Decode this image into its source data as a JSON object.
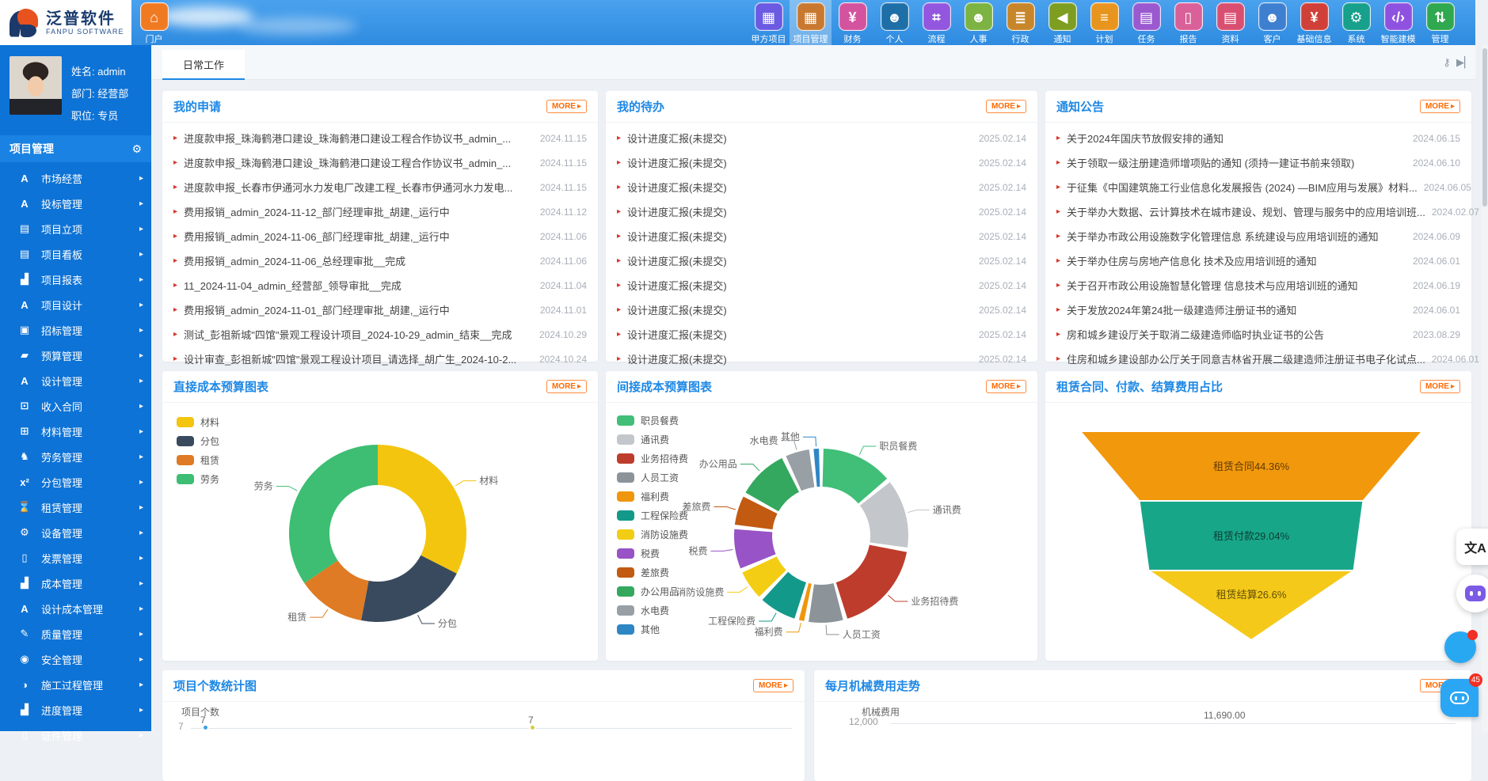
{
  "topnav": {
    "logo": {
      "title": "泛普软件",
      "subtitle": "FANPU SOFTWARE"
    },
    "items": [
      {
        "label": "门户",
        "icon": "home-icon",
        "color": "#F07A22",
        "active": false
      },
      {
        "label": "甲方项目",
        "icon": "modules-icon",
        "color": "#6A5BE2",
        "active": false
      },
      {
        "label": "项目管理",
        "icon": "modules-icon",
        "color": "#C9792F",
        "active": true
      },
      {
        "label": "财务",
        "icon": "finance-icon",
        "color": "#D4539E",
        "active": false
      },
      {
        "label": "个人",
        "icon": "user-icon",
        "color": "#1E6FA8",
        "active": false
      },
      {
        "label": "流程",
        "icon": "flow-icon",
        "color": "#9257DE",
        "active": false
      },
      {
        "label": "人事",
        "icon": "hr-icon",
        "color": "#7CB342",
        "active": false
      },
      {
        "label": "行政",
        "icon": "layers-icon",
        "color": "#C8862A",
        "active": false
      },
      {
        "label": "通知",
        "icon": "speaker-icon",
        "color": "#7E9E22",
        "active": false
      },
      {
        "label": "计划",
        "icon": "sliders-icon",
        "color": "#E8951F",
        "active": false
      },
      {
        "label": "任务",
        "icon": "clipboard-icon",
        "color": "#9B59D0",
        "active": false
      },
      {
        "label": "报告",
        "icon": "report-icon",
        "color": "#D96098",
        "active": false
      },
      {
        "label": "资料",
        "icon": "document-icon",
        "color": "#D94F72",
        "active": false
      },
      {
        "label": "客户",
        "icon": "customers-icon",
        "color": "#3E7FD0",
        "active": false
      },
      {
        "label": "基础信息",
        "icon": "info-doc-icon",
        "color": "#D04038",
        "active": false
      },
      {
        "label": "系统",
        "icon": "gear-icon",
        "color": "#17A08C",
        "active": false
      },
      {
        "label": "智能建模",
        "icon": "code-icon",
        "color": "#8F52E0",
        "active": false
      },
      {
        "label": "管理",
        "icon": "sort-icon",
        "color": "#2FA84F",
        "active": false
      }
    ]
  },
  "sidebar": {
    "profile": {
      "name": "姓名: admin",
      "department": "部门: 经营部",
      "position": "职位: 专员"
    },
    "section_label": "项目管理",
    "items": [
      {
        "label": "市场经营",
        "icon": "market-icon"
      },
      {
        "label": "投标管理",
        "icon": "bid-icon"
      },
      {
        "label": "项目立项",
        "icon": "project-init-icon"
      },
      {
        "label": "项目看板",
        "icon": "kanban-icon"
      },
      {
        "label": "项目报表",
        "icon": "chart-icon"
      },
      {
        "label": "项目设计",
        "icon": "design-icon"
      },
      {
        "label": "招标管理",
        "icon": "tender-icon"
      },
      {
        "label": "预算管理",
        "icon": "folder-icon"
      },
      {
        "label": "设计管理",
        "icon": "design-icon"
      },
      {
        "label": "收入合同",
        "icon": "money-icon"
      },
      {
        "label": "材料管理",
        "icon": "cart-icon"
      },
      {
        "label": "劳务管理",
        "icon": "labor-icon"
      },
      {
        "label": "分包管理",
        "icon": "subcontract-icon"
      },
      {
        "label": "租赁管理",
        "icon": "hourglass-icon"
      },
      {
        "label": "设备管理",
        "icon": "wrench-icon"
      },
      {
        "label": "发票管理",
        "icon": "invoice-icon"
      },
      {
        "label": "成本管理",
        "icon": "cost-chart-icon"
      },
      {
        "label": "设计成本管理",
        "icon": "design-icon"
      },
      {
        "label": "质量管理",
        "icon": "edit-icon"
      },
      {
        "label": "安全管理",
        "icon": "helmet-icon"
      },
      {
        "label": "施工过程管理",
        "icon": "process-icon"
      },
      {
        "label": "进度管理",
        "icon": "progress-icon"
      },
      {
        "label": "证件管理",
        "icon": "certificate-icon"
      }
    ]
  },
  "tabbar": {
    "active_tab": "日常工作"
  },
  "panels": {
    "my_applications": {
      "title": "我的申请",
      "more_label": "MORE",
      "items": [
        {
          "text": "进度款申报_珠海鹤港口建设_珠海鹤港口建设工程合作协议书_admin_...",
          "date": "2024.11.15"
        },
        {
          "text": "进度款申报_珠海鹤港口建设_珠海鹤港口建设工程合作协议书_admin_...",
          "date": "2024.11.15"
        },
        {
          "text": "进度款申报_长春市伊通河水力发电厂改建工程_长春市伊通河水力发电...",
          "date": "2024.11.15"
        },
        {
          "text": "费用报销_admin_2024-11-12_部门经理审批_胡建,_运行中",
          "date": "2024.11.12"
        },
        {
          "text": "费用报销_admin_2024-11-06_部门经理审批_胡建,_运行中",
          "date": "2024.11.06"
        },
        {
          "text": "费用报销_admin_2024-11-06_总经理审批__完成",
          "date": "2024.11.06"
        },
        {
          "text": "11_2024-11-04_admin_经营部_领导审批__完成",
          "date": "2024.11.04"
        },
        {
          "text": "费用报销_admin_2024-11-01_部门经理审批_胡建,_运行中",
          "date": "2024.11.01"
        },
        {
          "text": "测试_彭祖新城\"四馆\"景观工程设计项目_2024-10-29_admin_结束__完成",
          "date": "2024.10.29"
        },
        {
          "text": "设计审查_彭祖新城\"四馆\"景观工程设计项目_请选择_胡广生_2024-10-2...",
          "date": "2024.10.24"
        }
      ]
    },
    "my_todos": {
      "title": "我的待办",
      "more_label": "MORE",
      "items": [
        {
          "text": "设计进度汇报(未提交)",
          "date": "2025.02.14"
        },
        {
          "text": "设计进度汇报(未提交)",
          "date": "2025.02.14"
        },
        {
          "text": "设计进度汇报(未提交)",
          "date": "2025.02.14"
        },
        {
          "text": "设计进度汇报(未提交)",
          "date": "2025.02.14"
        },
        {
          "text": "设计进度汇报(未提交)",
          "date": "2025.02.14"
        },
        {
          "text": "设计进度汇报(未提交)",
          "date": "2025.02.14"
        },
        {
          "text": "设计进度汇报(未提交)",
          "date": "2025.02.14"
        },
        {
          "text": "设计进度汇报(未提交)",
          "date": "2025.02.14"
        },
        {
          "text": "设计进度汇报(未提交)",
          "date": "2025.02.14"
        },
        {
          "text": "设计进度汇报(未提交)",
          "date": "2025.02.14"
        }
      ]
    },
    "notices": {
      "title": "通知公告",
      "more_label": "MORE",
      "items": [
        {
          "text": "关于2024年国庆节放假安排的通知",
          "date": "2024.06.15"
        },
        {
          "text": "关于领取一级注册建造师增项贴的通知 (须持一建证书前来领取)",
          "date": "2024.06.10"
        },
        {
          "text": "于征集《中国建筑施工行业信息化发展报告 (2024) —BIM应用与发展》材料...",
          "date": "2024.06.05"
        },
        {
          "text": "关于举办大数据、云计算技术在城市建设、规划、管理与服务中的应用培训班...",
          "date": "2024.02.07"
        },
        {
          "text": "关于举办市政公用设施数字化管理信息 系统建设与应用培训班的通知",
          "date": "2024.06.09"
        },
        {
          "text": "关于举办住房与房地产信息化 技术及应用培训班的通知",
          "date": "2024.06.01"
        },
        {
          "text": "关于召开市政公用设施智慧化管理 信息技术与应用培训班的通知",
          "date": "2024.06.19"
        },
        {
          "text": "关于发放2024年第24批一级建造师注册证书的通知",
          "date": "2024.06.01"
        },
        {
          "text": "房和城乡建设厅关于取消二级建造师临时执业证书的公告",
          "date": "2023.08.29"
        },
        {
          "text": "住房和城乡建设部办公厅关于同意吉林省开展二级建造师注册证书电子化试点...",
          "date": "2024.06.01"
        }
      ]
    }
  },
  "chart_data": [
    {
      "type": "pie",
      "donut": true,
      "title": "直接成本预算图表",
      "more_label": "MORE",
      "legend_position": "top-left",
      "labels": [
        "材料",
        "分包",
        "租赁",
        "劳务"
      ],
      "values": [
        32.5,
        20.5,
        12.5,
        34.5
      ],
      "colors": [
        "#F3C50F",
        "#3A4A5E",
        "#DE7B24",
        "#3DBE72"
      ]
    },
    {
      "type": "pie",
      "donut": true,
      "title": "间接成本预算图表",
      "more_label": "MORE",
      "legend_position": "top-left",
      "pad_angle": 3,
      "labels": [
        "职员餐费",
        "通讯费",
        "业务招待费",
        "人员工资",
        "福利费",
        "工程保险费",
        "消防设施费",
        "税费",
        "差旅费",
        "办公用品",
        "水电费",
        "其他"
      ],
      "values": [
        13.5,
        13,
        17.5,
        6.5,
        1,
        7,
        5.5,
        7.5,
        5.5,
        9.5,
        4.5,
        1
      ],
      "colors": [
        "#41BE77",
        "#C3C7CC",
        "#BE3C2C",
        "#8C9499",
        "#F0960C",
        "#13998A",
        "#F2CD13",
        "#9853C6",
        "#C25A12",
        "#35A85F",
        "#98A0A5",
        "#2F86C5"
      ]
    },
    {
      "type": "funnel",
      "title": "租赁合同、付款、结算费用占比",
      "more_label": "MORE",
      "labels": [
        "租赁合同",
        "租赁付款",
        "租赁结算"
      ],
      "values": [
        44.36,
        29.04,
        26.6
      ],
      "value_labels": [
        "租赁合同44.36%",
        "租赁付款29.04%",
        "租赁结算26.6%"
      ],
      "colors": [
        "#F2980C",
        "#18A689",
        "#F5C91A"
      ]
    },
    {
      "type": "bar",
      "title": "项目个数统计图",
      "more_label": "MORE",
      "series_label": "项目个数",
      "axis_tick": "7",
      "visible_point_labels": [
        "7",
        "7"
      ],
      "point_colors": [
        "#3BA1E3",
        "#D8CC3F"
      ],
      "note_cropped": true
    },
    {
      "type": "line",
      "title": "每月机械费用走势",
      "more_label": "MORE",
      "series_label": "机械费用",
      "axis_tick": "12,000",
      "visible_point_labels": [
        "11,690.00"
      ],
      "note_cropped": true
    }
  ],
  "floating": {
    "chat_badge": "45"
  }
}
